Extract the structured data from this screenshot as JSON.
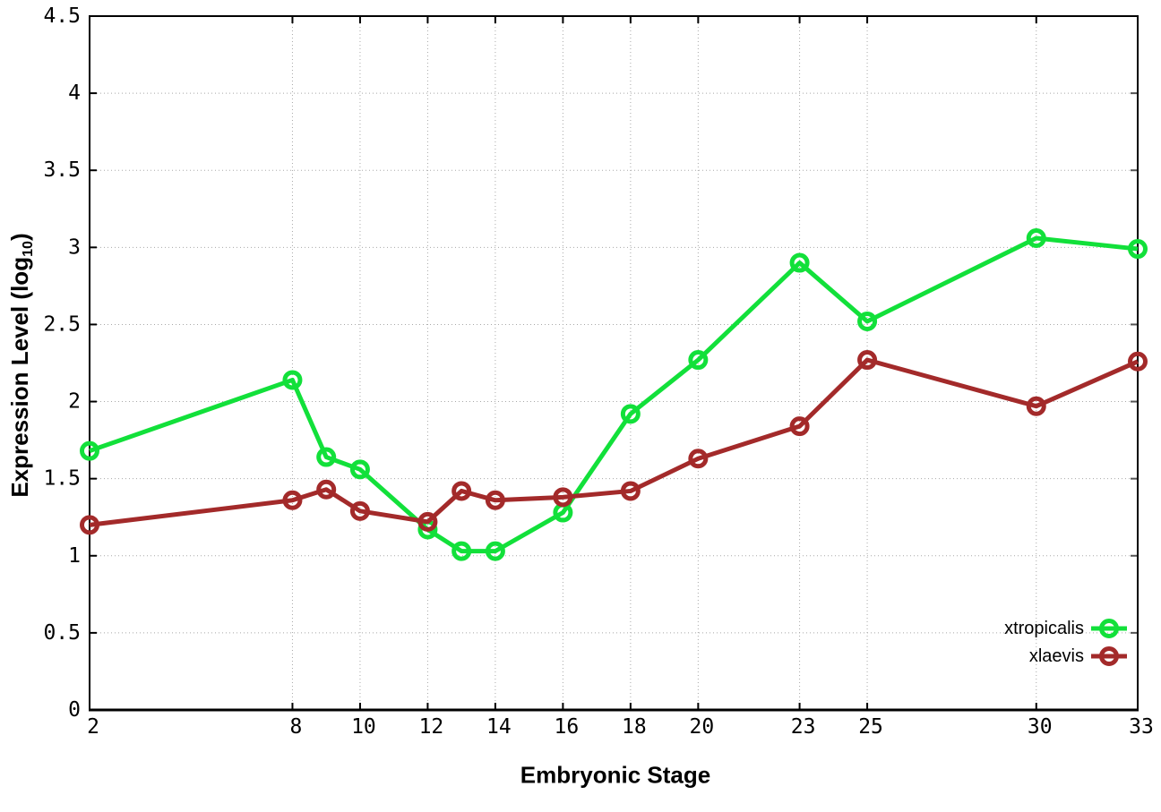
{
  "chart_data": {
    "type": "line",
    "title": "",
    "xlabel": "Embryonic Stage",
    "ylabel": "Expression Level (log10)",
    "ylabel_parts": {
      "pre": "Expression Level (log",
      "sub": "10",
      "post": ")"
    },
    "xlim": [
      2,
      33
    ],
    "ylim": [
      0,
      4.5
    ],
    "x_ticks": [
      2,
      8,
      10,
      12,
      14,
      16,
      18,
      20,
      23,
      25,
      30,
      33
    ],
    "y_ticks": [
      0,
      0.5,
      1,
      1.5,
      2,
      2.5,
      3,
      3.5,
      4,
      4.5
    ],
    "grid": true,
    "grid_style": "dotted",
    "legend_position": "inside-bottom-right",
    "x": [
      2,
      8,
      9,
      10,
      12,
      13,
      14,
      16,
      18,
      20,
      23,
      25,
      30,
      33
    ],
    "series": [
      {
        "name": "xtropicalis",
        "color": "#12e03a",
        "marker": "open-circle",
        "values": [
          1.68,
          2.14,
          1.64,
          1.56,
          1.17,
          1.03,
          1.03,
          1.28,
          1.92,
          2.27,
          2.9,
          2.52,
          3.06,
          2.99
        ]
      },
      {
        "name": "xlaevis",
        "color": "#a32a2a",
        "marker": "open-circle",
        "values": [
          1.2,
          1.36,
          1.43,
          1.29,
          1.22,
          1.42,
          1.36,
          1.38,
          1.42,
          1.63,
          1.84,
          2.27,
          1.97,
          2.26
        ]
      }
    ],
    "colors": {
      "grid": "#a8a8a8",
      "border": "#000000",
      "background": "#ffffff"
    }
  }
}
